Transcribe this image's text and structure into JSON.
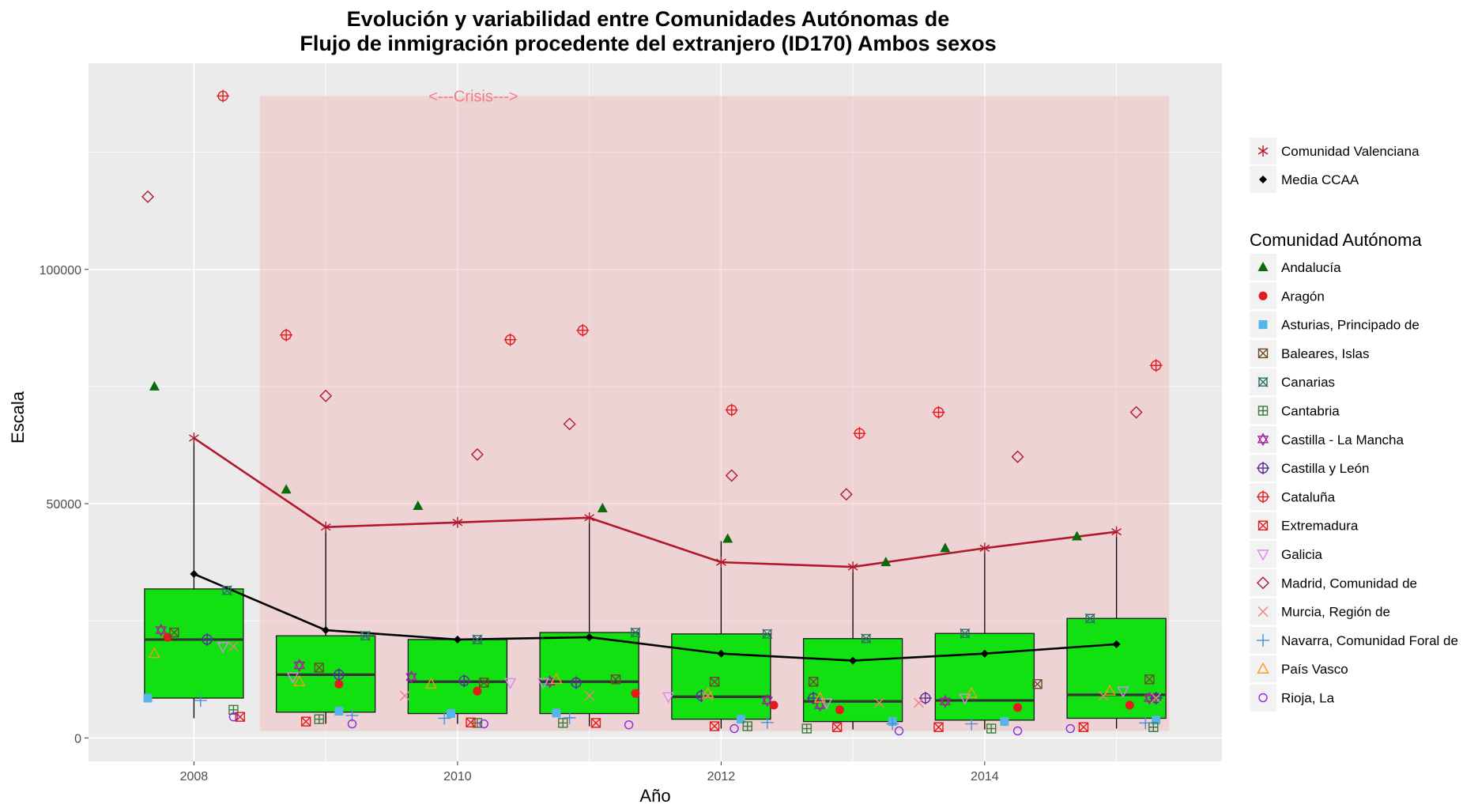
{
  "chart_data": {
    "type": "box",
    "title_line1": "Evolución y variabilidad entre Comunidades Autónomas de",
    "title_line2": "Flujo de inmigración procedente del extranjero (ID170) Ambos sexos",
    "xlabel": "Año",
    "ylabel": "Escala",
    "xlim": [
      2007.2,
      2015.8
    ],
    "ylim": [
      -5000,
      144000
    ],
    "x_ticks": [
      2008,
      2010,
      2012,
      2014
    ],
    "y_ticks": [
      0,
      50000,
      100000
    ],
    "y_tick_labels": [
      "0",
      "50000",
      "100000"
    ],
    "grid": true,
    "crisis": {
      "label": "<---Crisis--->",
      "x_from": 2008.5,
      "x_to": 2015.4,
      "y_from": 1500,
      "y_to": 137000,
      "label_y": 137000
    },
    "boxes": [
      {
        "x": 2008,
        "whisker_low": 4200,
        "q1": 8500,
        "median": 21000,
        "q3": 31800,
        "whisker_high": 64000
      },
      {
        "x": 2009,
        "whisker_low": 3000,
        "q1": 5500,
        "median": 13500,
        "q3": 21800,
        "whisker_high": 45000
      },
      {
        "x": 2010,
        "whisker_low": 3000,
        "q1": 5200,
        "median": 12000,
        "q3": 21000,
        "whisker_high": 21000
      },
      {
        "x": 2011,
        "whisker_low": 2500,
        "q1": 5200,
        "median": 12000,
        "q3": 22500,
        "whisker_high": 47000
      },
      {
        "x": 2012,
        "whisker_low": 2000,
        "q1": 4000,
        "median": 8800,
        "q3": 22200,
        "whisker_high": 42000
      },
      {
        "x": 2013,
        "whisker_low": 1800,
        "q1": 3500,
        "median": 7800,
        "q3": 21200,
        "whisker_high": 36000
      },
      {
        "x": 2014,
        "whisker_low": 1800,
        "q1": 3800,
        "median": 8000,
        "q3": 22300,
        "whisker_high": 40000
      },
      {
        "x": 2015,
        "whisker_low": 2000,
        "q1": 4200,
        "median": 9200,
        "q3": 25500,
        "whisker_high": 43000
      }
    ],
    "lines": [
      {
        "name": "Comunidad Valenciana",
        "color": "#b2182b",
        "shape": "asterisk",
        "x": [
          2008,
          2009,
          2010,
          2011,
          2012,
          2013,
          2014,
          2015
        ],
        "y": [
          64000,
          45000,
          46000,
          47000,
          37500,
          36500,
          40500,
          44000
        ]
      },
      {
        "name": "Media CCAA",
        "color": "#000000",
        "shape": "diamond-filled",
        "x": [
          2008,
          2009,
          2010,
          2011,
          2012,
          2013,
          2014,
          2015
        ],
        "y": [
          35000,
          23000,
          21000,
          21500,
          18000,
          16500,
          18000,
          20000
        ]
      }
    ],
    "series": [
      {
        "name": "Andalucía",
        "shape": "triangle-filled",
        "color": "#0b6b0b",
        "points": [
          [
            2007.7,
            75000
          ],
          [
            2008.7,
            53000
          ],
          [
            2009.7,
            49500
          ],
          [
            2011.1,
            49000
          ],
          [
            2012.05,
            42500
          ],
          [
            2013.25,
            37500
          ],
          [
            2013.7,
            40500
          ],
          [
            2014.7,
            43000
          ]
        ]
      },
      {
        "name": "Aragón",
        "shape": "circle-filled",
        "color": "#e41a1c",
        "points": [
          [
            2007.8,
            21500
          ],
          [
            2009.1,
            11500
          ],
          [
            2010.15,
            10000
          ],
          [
            2011.35,
            9500
          ],
          [
            2012.4,
            7000
          ],
          [
            2012.9,
            6000
          ],
          [
            2014.25,
            6500
          ],
          [
            2015.1,
            7000
          ]
        ]
      },
      {
        "name": "Asturias, Principado de",
        "shape": "square-filled",
        "color": "#56b4e9",
        "points": [
          [
            2007.65,
            8500
          ],
          [
            2009.1,
            5700
          ],
          [
            2009.95,
            5200
          ],
          [
            2010.75,
            5300
          ],
          [
            2012.15,
            4000
          ],
          [
            2013.3,
            3500
          ],
          [
            2014.15,
            3500
          ],
          [
            2015.3,
            3800
          ]
        ]
      },
      {
        "name": "Baleares, Islas",
        "shape": "square-x",
        "color": "#6b4c2a",
        "points": [
          [
            2007.85,
            22500
          ],
          [
            2008.95,
            15000
          ],
          [
            2010.2,
            11800
          ],
          [
            2011.2,
            12500
          ],
          [
            2011.95,
            12000
          ],
          [
            2012.7,
            12000
          ],
          [
            2014.4,
            11500
          ],
          [
            2015.25,
            12500
          ]
        ]
      },
      {
        "name": "Canarias",
        "shape": "square-cross",
        "color": "#2e6f6a",
        "points": [
          [
            2008.25,
            31500
          ],
          [
            2009.3,
            21800
          ],
          [
            2010.15,
            21000
          ],
          [
            2011.35,
            22500
          ],
          [
            2012.35,
            22200
          ],
          [
            2013.1,
            21200
          ],
          [
            2013.85,
            22300
          ],
          [
            2014.8,
            25500
          ]
        ]
      },
      {
        "name": "Cantabria",
        "shape": "square-plus",
        "color": "#3b7a3b",
        "points": [
          [
            2008.3,
            6000
          ],
          [
            2008.95,
            4000
          ],
          [
            2010.15,
            3200
          ],
          [
            2010.8,
            3200
          ],
          [
            2012.2,
            2500
          ],
          [
            2012.65,
            2000
          ],
          [
            2014.05,
            2000
          ],
          [
            2015.28,
            2300
          ]
        ]
      },
      {
        "name": "Castilla - La Mancha",
        "shape": "star-of-david",
        "color": "#a0229b",
        "points": [
          [
            2007.75,
            23000
          ],
          [
            2008.8,
            15500
          ],
          [
            2009.65,
            13000
          ],
          [
            2010.7,
            12000
          ],
          [
            2012.35,
            8000
          ],
          [
            2012.75,
            7000
          ],
          [
            2013.7,
            7800
          ],
          [
            2015.25,
            8500
          ]
        ]
      },
      {
        "name": "Castilla y León",
        "shape": "circle-plus",
        "color": "#5a2a9b",
        "points": [
          [
            2008.1,
            21000
          ],
          [
            2009.1,
            13500
          ],
          [
            2010.05,
            12200
          ],
          [
            2010.9,
            11800
          ],
          [
            2011.85,
            9000
          ],
          [
            2012.7,
            8500
          ],
          [
            2013.55,
            8500
          ],
          [
            2015.3,
            8500
          ]
        ]
      },
      {
        "name": "Cataluña",
        "shape": "circle-plus",
        "color": "#e41a1c",
        "points": [
          [
            2008.22,
            137000
          ],
          [
            2008.7,
            86000
          ],
          [
            2010.4,
            85000
          ],
          [
            2010.95,
            87000
          ],
          [
            2012.08,
            70000
          ],
          [
            2013.05,
            65000
          ],
          [
            2013.65,
            69500
          ],
          [
            2015.3,
            79500
          ]
        ]
      },
      {
        "name": "Extremadura",
        "shape": "square-x",
        "color": "#e41a1c",
        "points": [
          [
            2008.35,
            4500
          ],
          [
            2008.85,
            3500
          ],
          [
            2010.1,
            3300
          ],
          [
            2011.05,
            3200
          ],
          [
            2011.95,
            2500
          ],
          [
            2012.88,
            2300
          ],
          [
            2013.65,
            2300
          ],
          [
            2014.75,
            2300
          ]
        ]
      },
      {
        "name": "Galicia",
        "shape": "triangle-down",
        "color": "#dd88ee",
        "points": [
          [
            2008.22,
            19500
          ],
          [
            2008.75,
            13000
          ],
          [
            2010.4,
            11800
          ],
          [
            2010.65,
            11800
          ],
          [
            2011.6,
            8800
          ],
          [
            2012.8,
            7500
          ],
          [
            2013.85,
            8500
          ],
          [
            2015.05,
            10000
          ]
        ]
      },
      {
        "name": "Madrid, Comunidad de",
        "shape": "diamond",
        "color": "#b2182b",
        "points": [
          [
            2007.65,
            115500
          ],
          [
            2009.0,
            73000
          ],
          [
            2010.15,
            60500
          ],
          [
            2010.85,
            67000
          ],
          [
            2012.08,
            56000
          ],
          [
            2012.95,
            52000
          ],
          [
            2014.25,
            60000
          ],
          [
            2015.15,
            69500
          ]
        ]
      },
      {
        "name": "Murcia, Región de",
        "shape": "x",
        "color": "#f08080",
        "points": [
          [
            2008.3,
            19500
          ],
          [
            2009.6,
            9000
          ],
          [
            2011.0,
            9000
          ],
          [
            2011.9,
            9000
          ],
          [
            2013.2,
            7500
          ],
          [
            2013.5,
            7500
          ],
          [
            2014.9,
            9000
          ],
          [
            2015.3,
            8500
          ]
        ]
      },
      {
        "name": "Navarra, Comunidad Foral de",
        "shape": "plus",
        "color": "#4a8fd6",
        "points": [
          [
            2008.05,
            8000
          ],
          [
            2009.2,
            4800
          ],
          [
            2009.9,
            4200
          ],
          [
            2010.85,
            4300
          ],
          [
            2012.35,
            3300
          ],
          [
            2013.3,
            3000
          ],
          [
            2013.9,
            3000
          ],
          [
            2015.22,
            3200
          ]
        ]
      },
      {
        "name": "País Vasco",
        "shape": "triangle",
        "color": "#f39c12",
        "points": [
          [
            2007.7,
            18000
          ],
          [
            2008.8,
            12000
          ],
          [
            2009.8,
            11500
          ],
          [
            2010.75,
            12500
          ],
          [
            2011.9,
            9500
          ],
          [
            2012.75,
            8500
          ],
          [
            2013.9,
            9500
          ],
          [
            2014.95,
            10000
          ]
        ]
      },
      {
        "name": "Rioja, La",
        "shape": "circle",
        "color": "#8a2be2",
        "points": [
          [
            2008.3,
            4500
          ],
          [
            2009.2,
            3000
          ],
          [
            2010.2,
            3000
          ],
          [
            2011.3,
            2800
          ],
          [
            2012.1,
            2000
          ],
          [
            2013.35,
            1500
          ],
          [
            2014.25,
            1500
          ],
          [
            2014.65,
            2000
          ]
        ]
      }
    ]
  },
  "legend": {
    "top_items": [
      {
        "label": "Comunidad Valenciana",
        "shape": "asterisk",
        "color": "#b2182b"
      },
      {
        "label": "Media CCAA",
        "shape": "diamond-filled",
        "color": "#000000"
      }
    ],
    "group_title": "Comunidad Autónoma"
  }
}
